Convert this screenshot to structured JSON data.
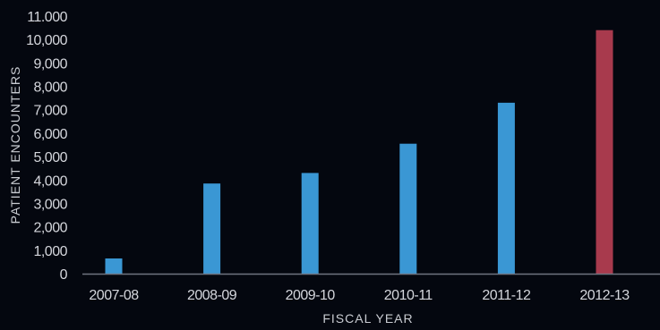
{
  "chart_data": {
    "type": "bar",
    "categories": [
      "2007-08",
      "2008-09",
      "2009-10",
      "2010-11",
      "2011-12",
      "2012-13"
    ],
    "values": [
      650,
      3850,
      4300,
      5550,
      7300,
      10400
    ],
    "bar_colors": [
      "#3a97d4",
      "#3a97d4",
      "#3a97d4",
      "#3a97d4",
      "#3a97d4",
      "#a83a4d"
    ],
    "xlabel": "FISCAL YEAR",
    "ylabel": "PATIENT ENCOUNTERS",
    "ylim": [
      0,
      11000
    ],
    "yticks": [
      0,
      1000,
      2000,
      3000,
      4000,
      5000,
      6000,
      7000,
      8000,
      9000,
      10000,
      11000
    ],
    "ytick_labels": [
      "0",
      "1,000",
      "2,000",
      "3,000",
      "4,000",
      "5,000",
      "6,000",
      "7,000",
      "8,000",
      "9,000",
      "10,000",
      "11.000"
    ],
    "grid": false,
    "background_color": "#04070f",
    "axis_color": "#6f7480"
  }
}
